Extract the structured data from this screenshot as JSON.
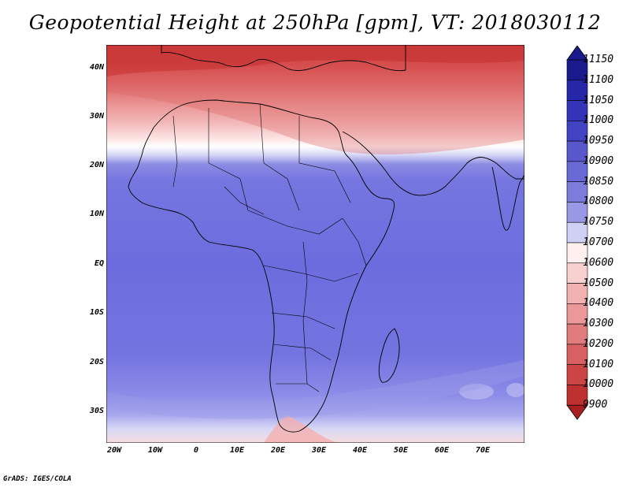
{
  "title": "Geopotential Height at 250hPa [gpm], VT: 2018030112",
  "credit": "GrADS: IGES/COLA",
  "map": {
    "region": "Africa",
    "lat_labels": [
      "40N",
      "30N",
      "20N",
      "10N",
      "EQ",
      "10S",
      "20S",
      "30S"
    ],
    "lon_labels": [
      "20W",
      "10W",
      "0",
      "10E",
      "20E",
      "30E",
      "40E",
      "50E",
      "60E",
      "70E"
    ]
  },
  "colorbar": {
    "labels": [
      "11150",
      "11100",
      "11050",
      "11000",
      "10950",
      "10900",
      "10850",
      "10800",
      "10750",
      "10700",
      "10600",
      "10500",
      "10400",
      "10300",
      "10200",
      "10100",
      "10000",
      "9900"
    ],
    "colors": [
      "#1a1a8c",
      "#2626a8",
      "#3434b8",
      "#4242c4",
      "#5858cc",
      "#6a6ad6",
      "#7c7cdd",
      "#9898e6",
      "#d0d0f4",
      "#fff0f0",
      "#f8d0d0",
      "#f2b2b2",
      "#ea9898",
      "#e07c7c",
      "#d86060",
      "#cc4444",
      "#bf3030",
      "#a82020"
    ]
  },
  "colors": {
    "ocean_blue": "#6e6ee0",
    "deep_blue": "#5c5cd8",
    "light_red": "#f2a8a8",
    "dark_red": "#c83232"
  }
}
